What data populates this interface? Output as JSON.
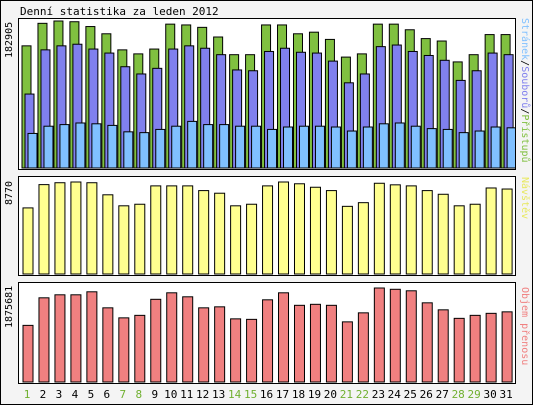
{
  "title": "Denní statistika za leden 2012",
  "colors": {
    "pristupu": "#80c040",
    "souboru": "#8080ee",
    "stranek": "#80c0ff",
    "navstev": "#ffff90",
    "objem": "#f08080",
    "weekend_day": "#70b030",
    "weekday": "#000000"
  },
  "chart_data": [
    {
      "type": "bar",
      "x": [
        "1",
        "2",
        "3",
        "4",
        "5",
        "6",
        "7",
        "8",
        "9",
        "10",
        "11",
        "12",
        "13",
        "14",
        "15",
        "16",
        "17",
        "18",
        "19",
        "20",
        "21",
        "22",
        "23",
        "24",
        "25",
        "26",
        "27",
        "28",
        "29",
        "30",
        "31"
      ],
      "weekend_days": [
        "1",
        "7",
        "8",
        "14",
        "15",
        "21",
        "22",
        "28",
        "29"
      ],
      "ymax_label": "182905",
      "right_label": {
        "stranek": "Stránek",
        "souboru": "Souborů",
        "pristupu": "Přístupů",
        "sep": "/"
      },
      "series": [
        {
          "name": "Přístupů",
          "values": [
            152000,
            180000,
            182905,
            182000,
            176000,
            167000,
            147000,
            142000,
            148000,
            179000,
            178000,
            175000,
            163000,
            141000,
            141000,
            178000,
            178000,
            167000,
            169000,
            160000,
            138000,
            142000,
            179000,
            179000,
            172000,
            161000,
            158000,
            132000,
            141000,
            166000,
            166000
          ]
        },
        {
          "name": "Souborů",
          "values": [
            92000,
            147000,
            152000,
            154000,
            148000,
            143000,
            126000,
            117000,
            124000,
            148000,
            152000,
            149000,
            141000,
            122000,
            121000,
            145000,
            149000,
            144000,
            143000,
            133000,
            106000,
            117000,
            151000,
            153000,
            145000,
            140000,
            134000,
            109000,
            121000,
            143000,
            141000
          ]
        },
        {
          "name": "Stránek",
          "values": [
            43000,
            52000,
            54000,
            56000,
            55000,
            53000,
            45000,
            44000,
            48000,
            52000,
            58000,
            54000,
            54000,
            52000,
            52000,
            48000,
            51000,
            52000,
            52000,
            51000,
            46000,
            51000,
            55000,
            56000,
            52000,
            49000,
            48000,
            44000,
            46000,
            51000,
            50000
          ]
        }
      ]
    },
    {
      "type": "bar",
      "x": [
        "1",
        "2",
        "3",
        "4",
        "5",
        "6",
        "7",
        "8",
        "9",
        "10",
        "11",
        "12",
        "13",
        "14",
        "15",
        "16",
        "17",
        "18",
        "19",
        "20",
        "21",
        "22",
        "23",
        "24",
        "25",
        "26",
        "27",
        "28",
        "29",
        "30",
        "31"
      ],
      "ymax_label": "8770",
      "right_label": "Návštěv",
      "series": [
        {
          "name": "Návštěv",
          "values": [
            6300,
            8520,
            8700,
            8770,
            8700,
            7550,
            6500,
            6650,
            8400,
            8400,
            8400,
            7950,
            7700,
            6500,
            6650,
            8400,
            8770,
            8600,
            8270,
            7950,
            6450,
            6800,
            8650,
            8500,
            8400,
            7950,
            7600,
            6500,
            6650,
            8200,
            8100
          ]
        }
      ]
    },
    {
      "type": "bar",
      "x": [
        "1",
        "2",
        "3",
        "4",
        "5",
        "6",
        "7",
        "8",
        "9",
        "10",
        "11",
        "12",
        "13",
        "14",
        "15",
        "16",
        "17",
        "18",
        "19",
        "20",
        "21",
        "22",
        "23",
        "24",
        "25",
        "26",
        "27",
        "28",
        "29",
        "30",
        "31"
      ],
      "ymax_label": "1875681",
      "right_label": "Objem přenosu",
      "series": [
        {
          "name": "Objem přenosu",
          "values": [
            1130000,
            1680000,
            1740000,
            1740000,
            1800000,
            1480000,
            1280000,
            1330000,
            1650000,
            1780000,
            1700000,
            1480000,
            1500000,
            1260000,
            1250000,
            1640000,
            1780000,
            1530000,
            1550000,
            1530000,
            1200000,
            1380000,
            1875681,
            1850000,
            1820000,
            1580000,
            1440000,
            1270000,
            1330000,
            1370000,
            1400000
          ]
        }
      ]
    }
  ]
}
